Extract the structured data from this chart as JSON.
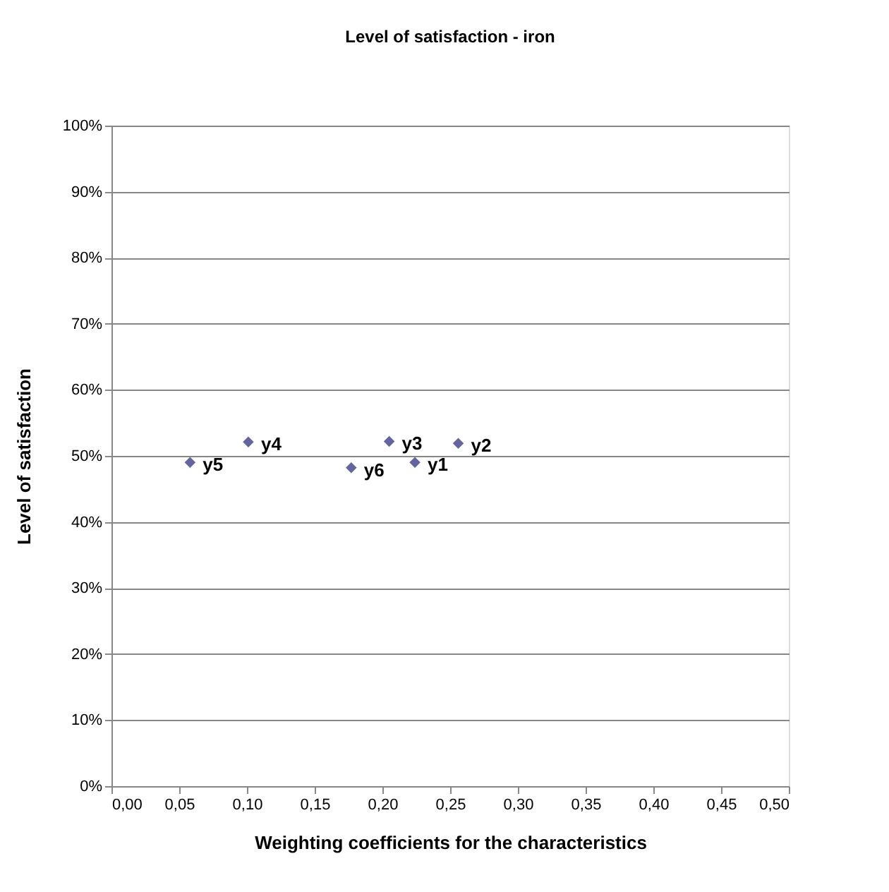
{
  "chart_data": {
    "type": "scatter",
    "title": "Level of satisfaction - iron",
    "xlabel": "Weighting coefficients for the characteristics",
    "ylabel": "Level of satisfaction",
    "x": [
      0.224,
      0.256,
      0.205,
      0.101,
      0.058,
      0.177
    ],
    "series": [
      {
        "color": "#6464a0",
        "values": [
          49.0,
          51.9,
          52.2,
          52.1,
          49.0,
          48.2
        ]
      }
    ],
    "annotations": [
      {
        "text": "y1",
        "x": 0.224,
        "y": 49.0
      },
      {
        "text": "y2",
        "x": 0.256,
        "y": 51.9
      },
      {
        "text": "y3",
        "x": 0.205,
        "y": 52.2
      },
      {
        "text": "y4",
        "x": 0.101,
        "y": 52.1
      },
      {
        "text": "y5",
        "x": 0.058,
        "y": 49.0
      },
      {
        "text": "y6",
        "x": 0.177,
        "y": 48.2
      }
    ],
    "xlim": [
      0,
      0.5
    ],
    "xticks": [
      {
        "value": 0,
        "label": "0,00"
      },
      {
        "value": 0.05,
        "label": "0,05"
      },
      {
        "value": 0.1,
        "label": "0,10"
      },
      {
        "value": 0.15,
        "label": "0,15"
      },
      {
        "value": 0.2,
        "label": "0,20"
      },
      {
        "value": 0.25,
        "label": "0,25"
      },
      {
        "value": 0.3,
        "label": "0,30"
      },
      {
        "value": 0.35,
        "label": "0,35"
      },
      {
        "value": 0.4,
        "label": "0,40"
      },
      {
        "value": 0.45,
        "label": "0,45"
      },
      {
        "value": 0.5,
        "label": "0,50"
      }
    ],
    "ylim": [
      0,
      100
    ],
    "yticks": [
      {
        "value": 0,
        "label": "0%"
      },
      {
        "value": 10,
        "label": "10%"
      },
      {
        "value": 20,
        "label": "20%"
      },
      {
        "value": 30,
        "label": "30%"
      },
      {
        "value": 40,
        "label": "40%"
      },
      {
        "value": 50,
        "label": "50%"
      },
      {
        "value": 60,
        "label": "60%"
      },
      {
        "value": 70,
        "label": "70%"
      },
      {
        "value": 80,
        "label": "80%"
      },
      {
        "value": 90,
        "label": "90%"
      },
      {
        "value": 100,
        "label": "100%"
      }
    ],
    "grid": "y",
    "marker": "diamond"
  }
}
